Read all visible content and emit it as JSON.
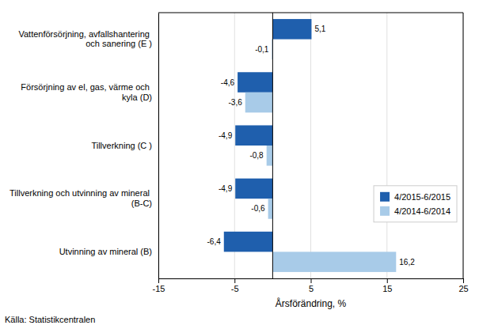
{
  "chart_data": {
    "type": "bar",
    "orientation": "horizontal",
    "categories": [
      "Utvinning av mineral  (B)",
      "Tillverkning och utvinning av mineral (B-C)",
      "Tillverkning (C )",
      "Försörjning av el, gas, värme och kyla (D)",
      "Vattenförsörjning, avfallshantering och sanering (E )"
    ],
    "series": [
      {
        "name": "4/2015-6/2015",
        "color": "#1F5FAD",
        "values": [
          -6.4,
          -4.9,
          -4.9,
          -4.6,
          5.1
        ],
        "value_labels": [
          "-6,4",
          "-4,9",
          "-4,9",
          "-4,6",
          "5,1"
        ]
      },
      {
        "name": "4/2014-6/2014",
        "color": "#A8CBE8",
        "values": [
          16.2,
          -0.6,
          -0.8,
          -3.6,
          -0.1
        ],
        "value_labels": [
          "16,2",
          "-0,6",
          "-0,8",
          "-3,6",
          "-0,1"
        ]
      }
    ],
    "xlabel": "Årsförändring, %",
    "xlim": [
      -15,
      25
    ],
    "xticks": [
      -15,
      -5,
      5,
      15,
      25
    ],
    "grid": true,
    "legend": "lower right",
    "data_labels": true,
    "annotations": [
      "Källa: Statistikcentralen"
    ]
  }
}
